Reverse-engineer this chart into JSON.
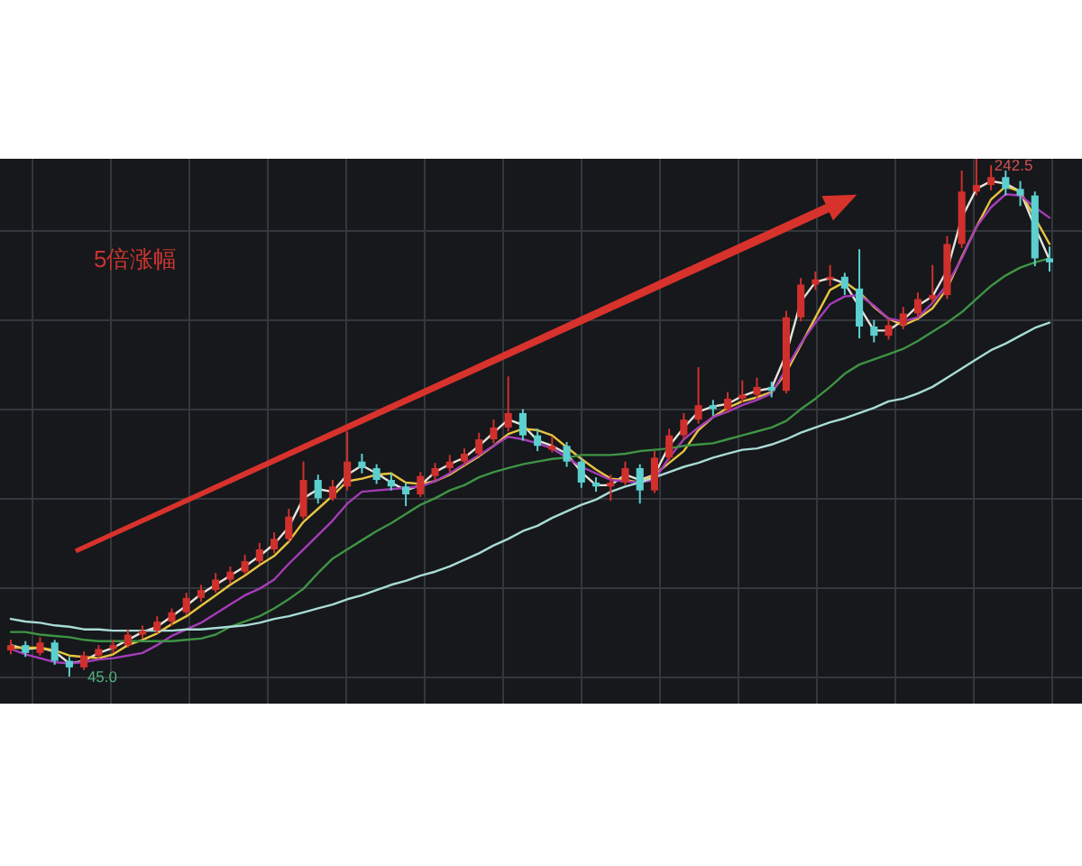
{
  "chart_data": {
    "type": "candlestick",
    "categories": [
      null,
      null,
      null,
      null,
      null,
      null,
      null,
      null,
      null,
      null,
      null,
      null,
      null,
      null,
      null,
      null,
      null,
      null,
      null,
      null,
      null,
      null,
      null,
      null,
      null,
      null,
      null,
      null,
      null,
      null,
      null,
      null,
      null,
      null,
      null,
      null,
      null,
      null,
      null,
      null,
      null,
      null,
      null,
      null,
      null,
      null,
      null,
      null,
      null,
      null,
      null,
      null,
      null,
      null,
      null,
      null,
      null,
      null,
      null,
      null,
      null,
      null,
      null,
      null,
      null,
      null,
      null,
      null,
      null,
      null,
      null,
      null
    ],
    "ohlc": [
      [
        55,
        59,
        53.5,
        57
      ],
      [
        57,
        58.5,
        52.5,
        54
      ],
      [
        54,
        60,
        53,
        58
      ],
      [
        58,
        59,
        49.5,
        51
      ],
      [
        51,
        52.5,
        45.0,
        48.5
      ],
      [
        48.5,
        54.5,
        47.5,
        53
      ],
      [
        53,
        57,
        52,
        55.5
      ],
      [
        55.5,
        59,
        54,
        57
      ],
      [
        57,
        63,
        56,
        61
      ],
      [
        61,
        64.5,
        59.5,
        62.5
      ],
      [
        62.5,
        68,
        61.5,
        66
      ],
      [
        66,
        71,
        64.5,
        69.5
      ],
      [
        69.5,
        77,
        68.5,
        75
      ],
      [
        75,
        80,
        73.5,
        78
      ],
      [
        78,
        84.5,
        77,
        82
      ],
      [
        82,
        87,
        80.5,
        85
      ],
      [
        85,
        91.5,
        84,
        89
      ],
      [
        89,
        96,
        88,
        93.5
      ],
      [
        93.5,
        100,
        92,
        97.5
      ],
      [
        97.5,
        109,
        96.5,
        106
      ],
      [
        106,
        127,
        105,
        120
      ],
      [
        120,
        122,
        111,
        113
      ],
      [
        113,
        120,
        112,
        117.5
      ],
      [
        117.5,
        138.5,
        116,
        127
      ],
      [
        127,
        130,
        122.5,
        124.5
      ],
      [
        124.5,
        126,
        118.5,
        120
      ],
      [
        120,
        122.5,
        116,
        117.5
      ],
      [
        117.5,
        119,
        110,
        114.5
      ],
      [
        114.5,
        123,
        113.5,
        121.5
      ],
      [
        121.5,
        126.5,
        120,
        124.5
      ],
      [
        124.5,
        129.5,
        123,
        127
      ],
      [
        127,
        132,
        125.5,
        130
      ],
      [
        130,
        138,
        129,
        135.5
      ],
      [
        135.5,
        143,
        134,
        140
      ],
      [
        140,
        159.5,
        138.5,
        145.5
      ],
      [
        145.5,
        147,
        135,
        137
      ],
      [
        137,
        139.5,
        131,
        133
      ],
      [
        131.5,
        136.5,
        130.5,
        133
      ],
      [
        133,
        134.5,
        125,
        127
      ],
      [
        127,
        128.5,
        117,
        119
      ],
      [
        119,
        121,
        115.5,
        117.5
      ],
      [
        117.5,
        122,
        112,
        119
      ],
      [
        119,
        127,
        118,
        124.5
      ],
      [
        124.5,
        126,
        111,
        116
      ],
      [
        116,
        131,
        115,
        128.5
      ],
      [
        128.5,
        139.5,
        127.5,
        137
      ],
      [
        137,
        145.5,
        135.5,
        143
      ],
      [
        143,
        163,
        141.5,
        148.5
      ],
      [
        148.5,
        150.5,
        144.5,
        147
      ],
      [
        147,
        153.5,
        145.5,
        151
      ],
      [
        151,
        158,
        149.5,
        152.5
      ],
      [
        152.5,
        159,
        151,
        155.5
      ],
      [
        155.5,
        157.5,
        151.5,
        154
      ],
      [
        154,
        184.5,
        153,
        182
      ],
      [
        182,
        197,
        180.5,
        194.5
      ],
      [
        194.5,
        199.5,
        192.5,
        196.5
      ],
      [
        196.5,
        202,
        194,
        197.5
      ],
      [
        197.5,
        199,
        190.5,
        193
      ],
      [
        193,
        208,
        174,
        178.5
      ],
      [
        178.5,
        181,
        172.5,
        175
      ],
      [
        175,
        181.5,
        173.5,
        179
      ],
      [
        179,
        186,
        177.5,
        183.5
      ],
      [
        183.5,
        191.5,
        182,
        189
      ],
      [
        189,
        202,
        187.5,
        190.5
      ],
      [
        190.5,
        213,
        189,
        210
      ],
      [
        210,
        238,
        208.5,
        230
      ],
      [
        230,
        242.5,
        228.5,
        232.5
      ],
      [
        232.5,
        240,
        230.5,
        235.5
      ],
      [
        235.5,
        238,
        228.5,
        231
      ],
      [
        231,
        234,
        224.5,
        228.5
      ],
      [
        228.5,
        230,
        201.5,
        204.5
      ],
      [
        204.5,
        209,
        199.5,
        203
      ]
    ],
    "colors": [
      "#d0302c",
      "#5ccfcf",
      "#d0302c",
      "#5ccfcf",
      "#5ccfcf",
      "#d0302c",
      "#d0302c",
      "#d0302c",
      "#d0302c",
      "#d0302c",
      "#d0302c",
      "#d0302c",
      "#d0302c",
      "#d0302c",
      "#d0302c",
      "#d0302c",
      "#d0302c",
      "#d0302c",
      "#d0302c",
      "#d0302c",
      "#d0302c",
      "#5ccfcf",
      "#d0302c",
      "#d0302c",
      "#5ccfcf",
      "#5ccfcf",
      "#5ccfcf",
      "#5ccfcf",
      "#d0302c",
      "#d0302c",
      "#d0302c",
      "#d0302c",
      "#d0302c",
      "#d0302c",
      "#d0302c",
      "#5ccfcf",
      "#5ccfcf",
      "#d0302c",
      "#5ccfcf",
      "#5ccfcf",
      "#5ccfcf",
      "#d0302c",
      "#d0302c",
      "#5ccfcf",
      "#d0302c",
      "#d0302c",
      "#d0302c",
      "#d0302c",
      "#5ccfcf",
      "#d0302c",
      "#d0302c",
      "#d0302c",
      "#5ccfcf",
      "#d0302c",
      "#d0302c",
      "#d0302c",
      "#d0302c",
      "#5ccfcf",
      "#5ccfcf",
      "#5ccfcf",
      "#d0302c",
      "#d0302c",
      "#d0302c",
      "#d0302c",
      "#d0302c",
      "#d0302c",
      "#d0302c",
      "#d0302c",
      "#5ccfcf",
      "#5ccfcf",
      "#5ccfcf",
      "#5ccfcf"
    ],
    "series": [
      {
        "type": "line",
        "color": "#e6e4da",
        "values": [
          57,
          55.5,
          56,
          54.5,
          50,
          51,
          54,
          56,
          59,
          62,
          64,
          68,
          72,
          76.5,
          80,
          83.5,
          87,
          91,
          95.5,
          102,
          113,
          116.5,
          115.5,
          122,
          125.5,
          122.5,
          119,
          116,
          118,
          123,
          126,
          128.5,
          133,
          138,
          143,
          141,
          135,
          133,
          130,
          123,
          118,
          118,
          122,
          120,
          122,
          133,
          140,
          146,
          148,
          149,
          152,
          154,
          155,
          168,
          188,
          195.5,
          197,
          195,
          186,
          177,
          177,
          181,
          186.5,
          190,
          200,
          220,
          231,
          234,
          233,
          230,
          216.5,
          204
        ]
      },
      {
        "type": "line",
        "color": "#e8c440",
        "values": [
          56,
          56,
          56,
          55,
          53,
          52.5,
          52,
          53.5,
          57,
          59,
          61.5,
          65,
          68,
          72,
          76,
          80,
          83.5,
          87.5,
          91,
          96.5,
          104,
          109,
          114,
          119.5,
          120.5,
          122,
          122.5,
          119,
          118.5,
          119.5,
          122,
          125.5,
          129,
          133,
          137.5,
          139.5,
          139,
          137,
          132.5,
          128,
          124,
          120.5,
          120,
          119,
          122,
          126.5,
          131,
          139,
          144,
          147.5,
          150,
          151.5,
          153.5,
          161,
          171.5,
          182,
          192.5,
          195.5,
          191.5,
          186,
          181.5,
          179,
          181.5,
          185.5,
          193,
          205,
          216.5,
          227,
          232,
          230,
          220,
          210
        ]
      },
      {
        "type": "line",
        "color": "#a63cb8",
        "values": [
          55.5,
          53.5,
          52,
          50.5,
          50,
          50.5,
          51.5,
          52,
          53,
          54,
          57,
          60.5,
          63,
          65.5,
          69,
          72.5,
          76,
          78.5,
          82,
          88,
          93.5,
          99,
          104.5,
          111,
          115.5,
          116,
          116.5,
          117,
          117.5,
          119.5,
          122.5,
          126,
          129.5,
          133,
          136.5,
          135.5,
          134,
          132,
          128.5,
          125,
          122.5,
          120,
          119.5,
          119,
          120,
          128.5,
          135.5,
          140,
          144,
          146,
          148.5,
          150.5,
          153,
          162.5,
          172,
          180,
          187,
          190,
          190.5,
          186.5,
          181.5,
          180.5,
          182,
          187.5,
          194.5,
          204.5,
          216.5,
          224,
          229,
          228.5,
          224,
          220
        ]
      },
      {
        "type": "line",
        "color": "#3e9444",
        "values": [
          62,
          62,
          61,
          60.5,
          60,
          59,
          58.5,
          58.5,
          58.5,
          58.5,
          58.5,
          58.5,
          59,
          59.5,
          61,
          64,
          66,
          68,
          71,
          74.5,
          78.5,
          84.5,
          90,
          93.5,
          97,
          100.5,
          103.5,
          107,
          110.5,
          113,
          116,
          118,
          121,
          123,
          124.5,
          126,
          127,
          128,
          128.5,
          129.5,
          129.5,
          129.5,
          130,
          131,
          131.5,
          132,
          133,
          133.5,
          134,
          135.5,
          137,
          138.5,
          140,
          142.5,
          147,
          151,
          155.5,
          160.5,
          164,
          166,
          168,
          170,
          173,
          176.5,
          180,
          184,
          189,
          194,
          198,
          201,
          203,
          204.5
        ]
      },
      {
        "type": "line",
        "color": "#a9dcd6",
        "values": [
          67,
          66,
          65.5,
          64.5,
          64,
          63,
          63,
          62.5,
          62.5,
          62.5,
          62.5,
          62.5,
          63,
          63,
          63.5,
          64,
          64.5,
          65.5,
          67,
          68,
          69.5,
          71,
          72.5,
          74.5,
          76,
          78,
          80,
          81.5,
          83.5,
          85,
          87,
          89.5,
          92,
          95,
          97.5,
          100.5,
          102.5,
          105.5,
          108,
          110.5,
          112.5,
          115.5,
          117.5,
          119,
          121,
          123,
          125,
          126.5,
          128.5,
          130,
          131.5,
          132,
          133.5,
          135.5,
          138,
          140,
          142,
          143.5,
          145.5,
          147.5,
          150,
          151,
          153,
          155.5,
          159,
          162.5,
          166,
          169.5,
          172,
          175,
          178,
          180
        ]
      }
    ],
    "annotations": [
      "5倍涨幅",
      "242.5",
      "45.0"
    ],
    "grid": true
  }
}
